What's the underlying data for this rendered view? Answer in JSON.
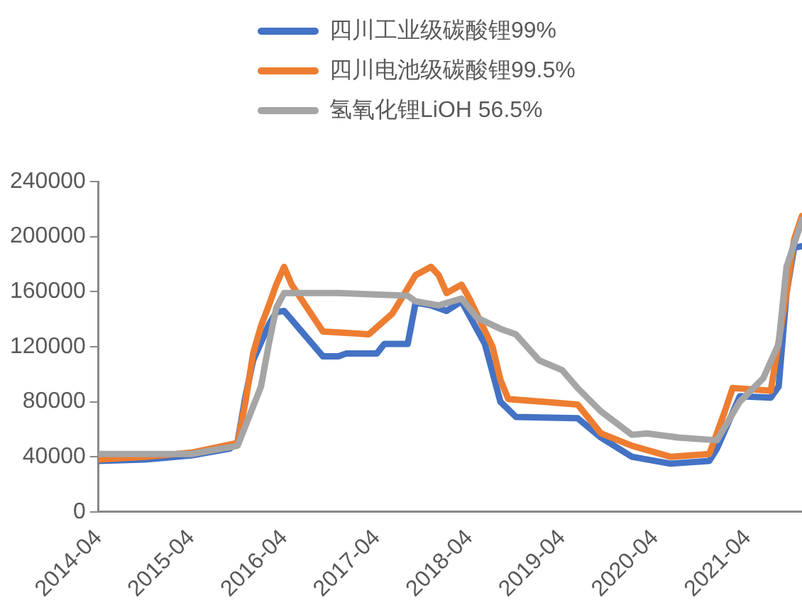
{
  "chart_data": {
    "type": "line",
    "legend": "top",
    "grid": false,
    "marker": "none",
    "line_style": "solid",
    "xlim": [
      "2014-04",
      "2021-11"
    ],
    "xticks": [
      "2014-04",
      "2015-04",
      "2016-04",
      "2017-04",
      "2018-04",
      "2019-04",
      "2020-04",
      "2021-04"
    ],
    "ylim": [
      0,
      240000
    ],
    "yticks": [
      0,
      40000,
      80000,
      120000,
      160000,
      200000,
      240000
    ],
    "series": [
      {
        "name": "四川工业级碳酸锂99%",
        "color": "#4472c4",
        "x": [
          "2014-04",
          "2014-10",
          "2015-04",
          "2015-09",
          "2015-10",
          "2015-11",
          "2015-12",
          "2016-02",
          "2016-03",
          "2016-04",
          "2016-09",
          "2016-11",
          "2016-12",
          "2017-04",
          "2017-05",
          "2017-08",
          "2017-09",
          "2017-11",
          "2018-01",
          "2018-03",
          "2018-06",
          "2018-08",
          "2018-10",
          "2019-06",
          "2019-09",
          "2020-01",
          "2020-06",
          "2020-11",
          "2020-12",
          "2021-03",
          "2021-07",
          "2021-08",
          "2021-09",
          "2021-10",
          "2021-11"
        ],
        "values": [
          37000,
          38000,
          41000,
          46000,
          51000,
          84000,
          110000,
          136000,
          145000,
          146000,
          113000,
          113000,
          115000,
          115000,
          122000,
          122000,
          152000,
          150000,
          146000,
          153000,
          122000,
          80000,
          69000,
          68000,
          54000,
          40000,
          35000,
          37000,
          46000,
          84000,
          83000,
          91000,
          159000,
          192000,
          193000
        ]
      },
      {
        "name": "四川电池级碳酸锂99.5%",
        "color": "#ed7d31",
        "x": [
          "2014-04",
          "2014-10",
          "2015-04",
          "2015-10",
          "2015-11",
          "2015-12",
          "2016-01",
          "2016-02",
          "2016-03",
          "2016-04",
          "2016-05",
          "2016-09",
          "2017-03",
          "2017-06",
          "2017-07",
          "2017-09",
          "2017-11",
          "2017-12",
          "2018-01",
          "2018-03",
          "2018-04",
          "2018-07",
          "2018-08",
          "2018-09",
          "2019-06",
          "2019-09",
          "2020-01",
          "2020-06",
          "2020-11",
          "2021-01",
          "2021-02",
          "2021-07",
          "2021-09",
          "2021-10",
          "2021-11"
        ],
        "values": [
          38000,
          40000,
          43000,
          50000,
          80000,
          115000,
          135000,
          150000,
          165000,
          178000,
          165000,
          131000,
          129000,
          144000,
          153000,
          172000,
          178000,
          172000,
          159000,
          165000,
          155000,
          120000,
          96000,
          82000,
          78000,
          57000,
          48000,
          40000,
          42000,
          73000,
          90000,
          88000,
          159000,
          198000,
          215000
        ]
      },
      {
        "name": "氢氧化锂LiOH 56.5%",
        "color": "#a5a5a5",
        "x": [
          "2014-04",
          "2015-04",
          "2015-10",
          "2016-01",
          "2016-02",
          "2016-03",
          "2016-04",
          "2016-11",
          "2017-08",
          "2017-09",
          "2017-12",
          "2018-03",
          "2018-05",
          "2018-08",
          "2018-10",
          "2019-01",
          "2019-04",
          "2019-06",
          "2019-09",
          "2020-01",
          "2020-03",
          "2020-07",
          "2020-12",
          "2021-03",
          "2021-06",
          "2021-08",
          "2021-09",
          "2021-11"
        ],
        "values": [
          42000,
          42000,
          48000,
          91000,
          122000,
          148000,
          159000,
          159000,
          157000,
          153000,
          150000,
          155000,
          141000,
          133000,
          129000,
          110000,
          103000,
          90000,
          73000,
          56000,
          57000,
          54000,
          52000,
          80000,
          97000,
          122000,
          178000,
          212000
        ]
      }
    ]
  }
}
